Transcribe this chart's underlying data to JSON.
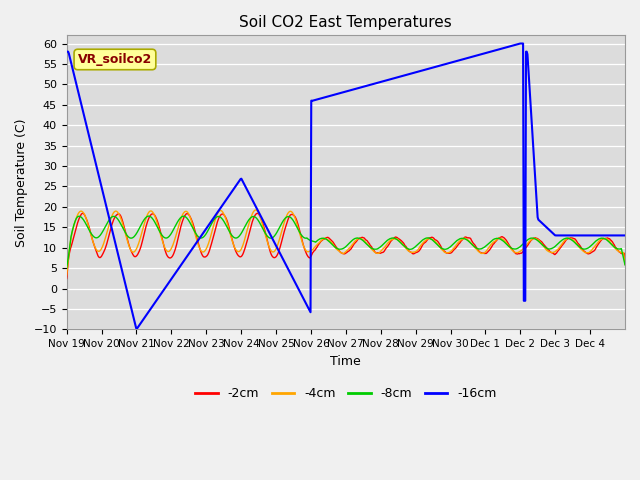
{
  "title": "Soil CO2 East Temperatures",
  "xlabel": "Time",
  "ylabel": "Soil Temperature (C)",
  "ylim": [
    -10,
    62
  ],
  "yticks": [
    -10,
    -5,
    0,
    5,
    10,
    15,
    20,
    25,
    30,
    35,
    40,
    45,
    50,
    55,
    60
  ],
  "bg_color": "#dcdcdc",
  "fig_color": "#f0f0f0",
  "legend_label": "VR_soilco2",
  "legend_box_color": "#ffff99",
  "legend_text_color": "#880000",
  "series": {
    "neg2cm": {
      "color": "#ff0000",
      "label": "-2cm"
    },
    "neg4cm": {
      "color": "#ffa500",
      "label": "-4cm"
    },
    "neg8cm": {
      "color": "#00cc00",
      "label": "-8cm"
    },
    "neg16cm": {
      "color": "#0000ff",
      "label": "-16cm"
    }
  },
  "xtick_labels": [
    "Nov 19",
    "Nov 20",
    "Nov 21",
    "Nov 22",
    "Nov 23",
    "Nov 24",
    "Nov 25",
    "Nov 26",
    "Nov 27",
    "Nov 28",
    "Nov 29",
    "Nov 30",
    "Dec 1",
    "Dec 2",
    "Dec 3",
    "Dec 4"
  ]
}
